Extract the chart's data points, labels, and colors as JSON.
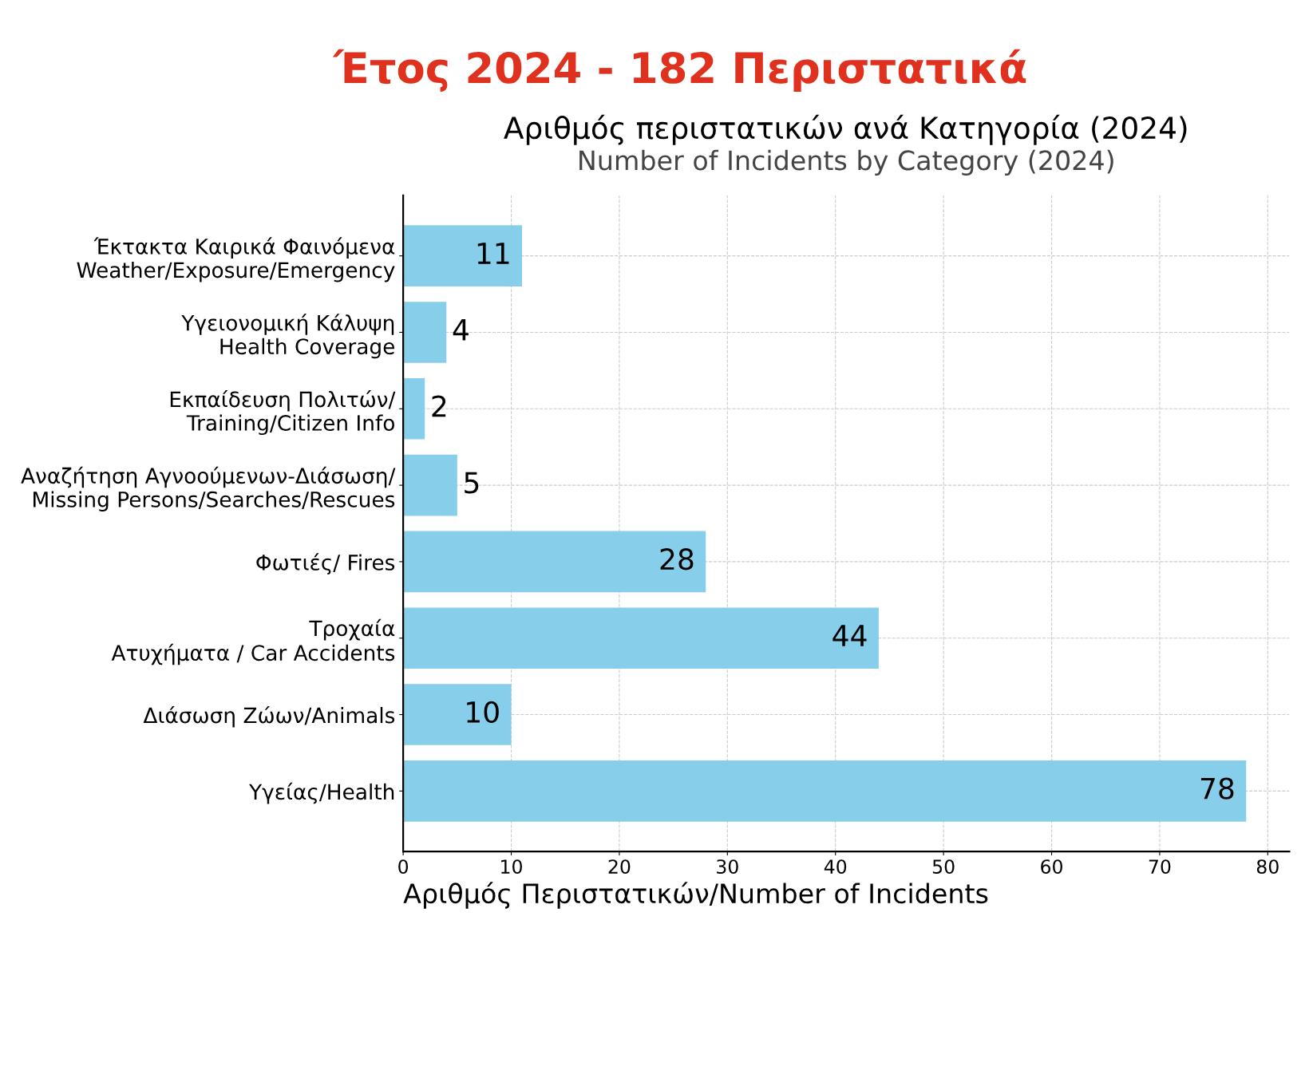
{
  "chart_data": {
    "type": "bar",
    "orientation": "horizontal",
    "title": "Έτος 2024 - 182 Περιστατικά",
    "subtitle": "Αριθμός περιστατικών ανά Κατηγορία (2024)\nNumber of Incidents by Category (2024)",
    "xlabel": "Αριθμός Περιστατικών/Number of Incidents",
    "categories": [
      "Έκτακτα Καιρικά Φαινόμενα\nWeather/Exposure/Emergency",
      "Υγειονομική Κάλυψη\nHealth Coverage",
      "Εκπαίδευση Πολιτών/\nTraining/Citizen Info",
      "Αναζήτηση Αγνοούμενων-Διάσωση/\nMissing Persons/Searches/Rescues",
      "Φωτιές/ Fires",
      "Τροχαία\nΑτυχήματα / Car Accidents",
      "Διάσωση Ζώων/Animals",
      "Υγείας/Health"
    ],
    "values": [
      11,
      4,
      2,
      5,
      28,
      44,
      10,
      78
    ],
    "color": "#87ceeb",
    "data_labels": true,
    "xlim": [
      0,
      82
    ],
    "xticks": [
      0,
      10,
      20,
      30,
      40,
      50,
      60,
      70,
      80
    ],
    "grid": true
  }
}
